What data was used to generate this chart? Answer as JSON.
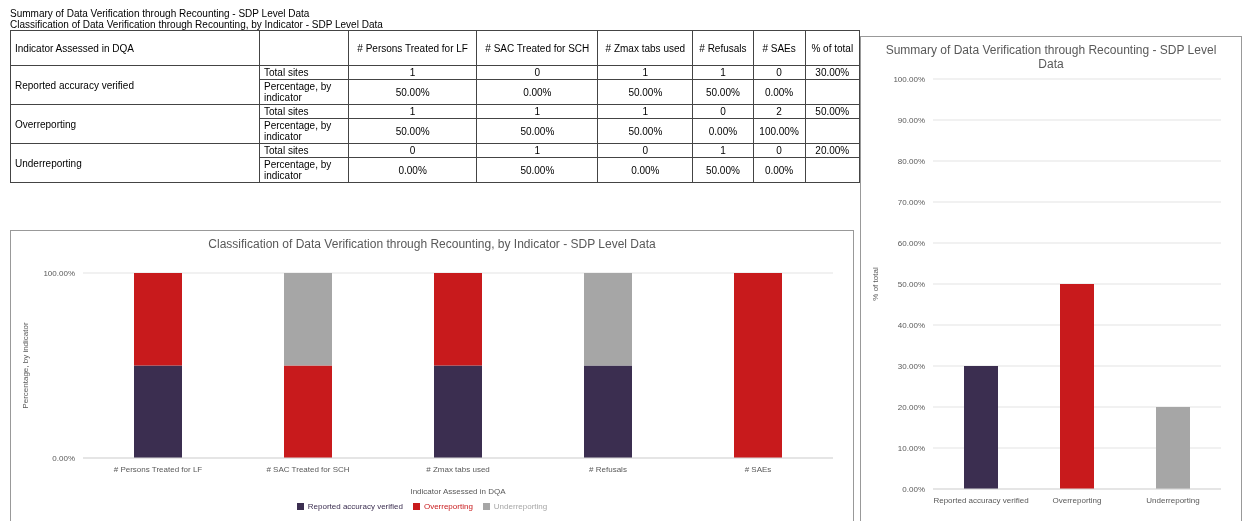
{
  "chart_data": [
    {
      "type": "heatmap",
      "title": "Summary of Data Verification through Recounting - SDP Level Data",
      "subtitle": "Classification of Data Verification through Recounting, by Indicator - SDP Level Data",
      "ylabel": "Indicator Assessed in DQA",
      "categories": [
        "# Persons Treated for LF",
        "# SAC Treated for SCH",
        "# Zmax tabs used",
        "# Refusals",
        "# SAEs",
        "% of total"
      ],
      "y_categories": [
        "Total sites",
        "Percentage, by indicator",
        "Total sites",
        "Percentage, by indicator",
        "Total sites",
        "Percentage, by indicator"
      ],
      "y2_categories": [
        "Reported accuracy verified",
        null,
        "Overreporting",
        null,
        "Underreporting",
        null
      ],
      "cells": [
        [
          1,
          0,
          1,
          1,
          0,
          30
        ],
        [
          50,
          0,
          50,
          50,
          0,
          null
        ],
        [
          1,
          1,
          1,
          0,
          2,
          50
        ],
        [
          50,
          50,
          50,
          0,
          100,
          null
        ],
        [
          0,
          1,
          0,
          1,
          0,
          20
        ],
        [
          0,
          50,
          0,
          50,
          0,
          null
        ]
      ],
      "cell_labels": [
        [
          "1",
          "0",
          "1",
          "1",
          "0",
          "30.00%"
        ],
        [
          "50.00%",
          "0.00%",
          "50.00%",
          "50.00%",
          "0.00%",
          null
        ],
        [
          "1",
          "1",
          "1",
          "0",
          "2",
          "50.00%"
        ],
        [
          "50.00%",
          "50.00%",
          "50.00%",
          "0.00%",
          "100.00%",
          null
        ],
        [
          "0",
          "1",
          "0",
          "1",
          "0",
          "20.00%"
        ],
        [
          "0.00%",
          "50.00%",
          "0.00%",
          "50.00%",
          "0.00%",
          null
        ]
      ]
    },
    {
      "type": "bar",
      "stacked": true,
      "title": "Classification of Data Verification through Recounting, by Indicator - SDP Level Data",
      "xlabel": "Indicator Assessed in DQA",
      "ylabel": "Percentage, by indicator",
      "categories": [
        "# Persons Treated for LF",
        "# SAC Treated for SCH",
        "# Zmax tabs used",
        "# Refusals",
        "# SAEs"
      ],
      "series": [
        {
          "name": "Reported accuracy verified",
          "color": "#3b2e50",
          "values": [
            50,
            0,
            50,
            50,
            0
          ]
        },
        {
          "name": "Overreporting",
          "color": "#c81a1c",
          "values": [
            50,
            50,
            50,
            0,
            100
          ]
        },
        {
          "name": "Underreporting",
          "color": "#a6a6a6",
          "values": [
            0,
            50,
            0,
            50,
            0
          ]
        }
      ],
      "ylim": [
        0,
        100
      ],
      "yticks": [
        {
          "value": 0,
          "label": "0.00%"
        },
        {
          "value": 100,
          "label": "100.00%"
        }
      ],
      "grid": "y",
      "legend": "bottom"
    },
    {
      "type": "bar",
      "title": "Summary of Data Verification through Recounting - SDP Level Data",
      "ylabel": "% of total",
      "categories": [
        "Reported accuracy verified",
        "Overreporting",
        "Underreporting"
      ],
      "values": [
        30,
        50,
        20
      ],
      "colors": [
        "#3b2e50",
        "#c81a1c",
        "#a6a6a6"
      ],
      "ylim": [
        0,
        100
      ],
      "yticks": [
        {
          "value": 0,
          "label": "0.00%"
        },
        {
          "value": 10,
          "label": "10.00%"
        },
        {
          "value": 20,
          "label": "20.00%"
        },
        {
          "value": 30,
          "label": "30.00%"
        },
        {
          "value": 40,
          "label": "40.00%"
        },
        {
          "value": 50,
          "label": "50.00%"
        },
        {
          "value": 60,
          "label": "60.00%"
        },
        {
          "value": 70,
          "label": "70.00%"
        },
        {
          "value": 80,
          "label": "80.00%"
        },
        {
          "value": 90,
          "label": "90.00%"
        },
        {
          "value": 100,
          "label": "100.00%"
        }
      ],
      "grid": "y"
    }
  ]
}
